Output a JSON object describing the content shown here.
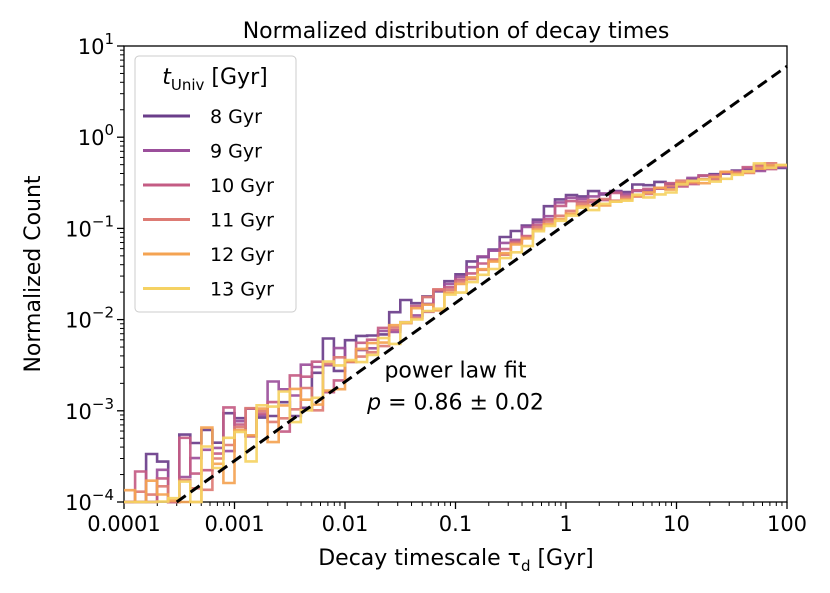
{
  "chart_data": {
    "type": "line",
    "title": "Normalized distribution of decay times",
    "xlabel": "Decay timescale τ",
    "xlabel_sub": "d",
    "xlabel_unit": " [Gyr]",
    "ylabel": "Normalized Count",
    "xscale": "log",
    "yscale": "log",
    "xlim": [
      0.0001,
      100
    ],
    "ylim": [
      0.0001,
      10
    ],
    "x_ticks": [
      {
        "value": 0.0001,
        "label": "0.0001"
      },
      {
        "value": 0.001,
        "label": "0.001"
      },
      {
        "value": 0.01,
        "label": "0.01"
      },
      {
        "value": 0.1,
        "label": "0.1"
      },
      {
        "value": 1,
        "label": "1"
      },
      {
        "value": 10,
        "label": "10"
      },
      {
        "value": 100,
        "label": "100"
      }
    ],
    "y_ticks": [
      {
        "value": 0.0001,
        "base": "10",
        "exp": "−4"
      },
      {
        "value": 0.001,
        "base": "10",
        "exp": "−3"
      },
      {
        "value": 0.01,
        "base": "10",
        "exp": "−2"
      },
      {
        "value": 0.1,
        "base": "10",
        "exp": "−1"
      },
      {
        "value": 1,
        "base": "10",
        "exp": "0"
      },
      {
        "value": 10,
        "base": "10",
        "exp": "1"
      }
    ],
    "grid": false,
    "legend": {
      "position": "top-left",
      "title_main": "t",
      "title_sub": "Univ",
      "title_rest": " [Gyr]"
    },
    "bins_per_decade": 10,
    "series": [
      {
        "name": "8 Gyr",
        "color": "#6a3d8a",
        "decay_at_1gyr": 0.22,
        "tail_at_100": 0.48,
        "noise_seed": 1
      },
      {
        "name": "9 Gyr",
        "color": "#9b4f9b",
        "decay_at_1gyr": 0.2,
        "tail_at_100": 0.5,
        "noise_seed": 2
      },
      {
        "name": "10 Gyr",
        "color": "#c45c84",
        "decay_at_1gyr": 0.18,
        "tail_at_100": 0.52,
        "noise_seed": 3
      },
      {
        "name": "11 Gyr",
        "color": "#dd7b74",
        "decay_at_1gyr": 0.165,
        "tail_at_100": 0.54,
        "noise_seed": 4
      },
      {
        "name": "12 Gyr",
        "color": "#f4a352",
        "decay_at_1gyr": 0.15,
        "tail_at_100": 0.55,
        "noise_seed": 5
      },
      {
        "name": "13 Gyr",
        "color": "#f5d263",
        "decay_at_1gyr": 0.14,
        "tail_at_100": 0.56,
        "noise_seed": 6
      }
    ],
    "fit_line": {
      "style": "dashed",
      "color": "#000000",
      "points": [
        [
          0.0003,
          0.0001
        ],
        [
          100,
          6
        ]
      ]
    },
    "annotation": {
      "line1": "power law fit",
      "p_symbol": "p",
      "p_value": " = 0.86 ± 0.02",
      "x": 0.1,
      "y": 0.0012
    }
  }
}
